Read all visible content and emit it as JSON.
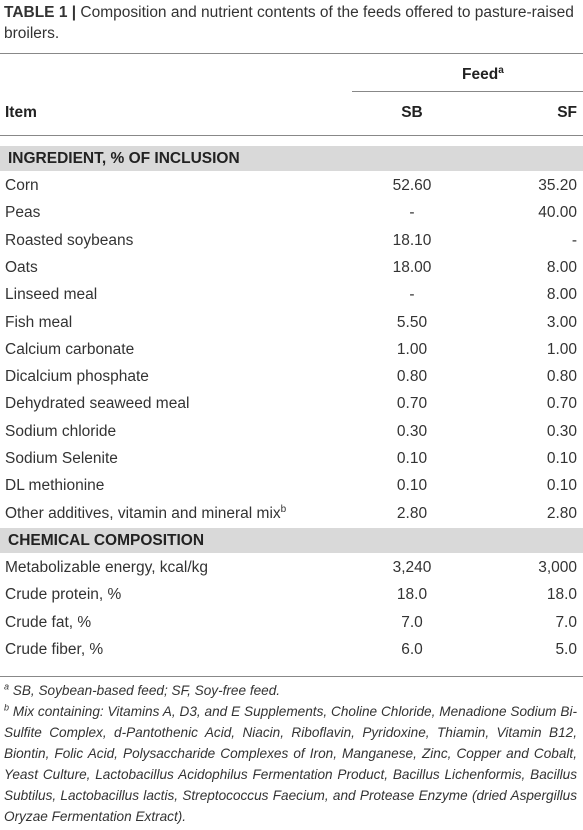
{
  "caption": {
    "label": "TABLE 1 |",
    "text": "Composition and nutrient contents of the feeds offered to pasture-raised broilers."
  },
  "header": {
    "group": "Feed",
    "group_sup": "a",
    "item": "Item",
    "col_sb": "SB",
    "col_sf": "SF"
  },
  "sections": [
    {
      "title": "INGREDIENT, % OF INCLUSION",
      "rows": [
        {
          "item": "Corn",
          "sup": "",
          "sb": "52.60",
          "sf": "35.20"
        },
        {
          "item": "Peas",
          "sup": "",
          "sb": "-",
          "sf": "40.00"
        },
        {
          "item": "Roasted soybeans",
          "sup": "",
          "sb": "18.10",
          "sf": "-"
        },
        {
          "item": "Oats",
          "sup": "",
          "sb": "18.00",
          "sf": "8.00"
        },
        {
          "item": "Linseed meal",
          "sup": "",
          "sb": "-",
          "sf": "8.00"
        },
        {
          "item": "Fish meal",
          "sup": "",
          "sb": "5.50",
          "sf": "3.00"
        },
        {
          "item": "Calcium carbonate",
          "sup": "",
          "sb": "1.00",
          "sf": "1.00"
        },
        {
          "item": "Dicalcium phosphate",
          "sup": "",
          "sb": "0.80",
          "sf": "0.80"
        },
        {
          "item": "Dehydrated seaweed meal",
          "sup": "",
          "sb": "0.70",
          "sf": "0.70"
        },
        {
          "item": "Sodium chloride",
          "sup": "",
          "sb": "0.30",
          "sf": "0.30"
        },
        {
          "item": "Sodium Selenite",
          "sup": "",
          "sb": "0.10",
          "sf": "0.10"
        },
        {
          "item": "DL methionine",
          "sup": "",
          "sb": "0.10",
          "sf": "0.10"
        },
        {
          "item": "Other additives, vitamin and mineral mix",
          "sup": "b",
          "sb": "2.80",
          "sf": "2.80"
        }
      ]
    },
    {
      "title": "CHEMICAL COMPOSITION",
      "rows": [
        {
          "item": "Metabolizable energy, kcal/kg",
          "sup": "",
          "sb": "3,240",
          "sf": "3,000"
        },
        {
          "item": "Crude protein, %",
          "sup": "",
          "sb": "18.0",
          "sf": "18.0"
        },
        {
          "item": "Crude fat, %",
          "sup": "",
          "sb": "7.0",
          "sf": "7.0"
        },
        {
          "item": "Crude fiber, %",
          "sup": "",
          "sb": "6.0",
          "sf": "5.0"
        }
      ]
    }
  ],
  "footnotes": [
    {
      "mark": "a",
      "text": "SB, Soybean-based feed; SF, Soy-free feed."
    },
    {
      "mark": "b",
      "text": "Mix containing: Vitamins A, D3, and E Supplements, Choline Chloride, Menadione Sodium Bi-Sulfite Complex, d-Pantothenic Acid, Niacin, Riboflavin, Pyridoxine, Thiamin, Vitamin B12, Biontin, Folic Acid, Polysaccharide Complexes of Iron, Manganese, Zinc, Copper and Cobalt, Yeast Culture, Lactobacillus Acidophilus Fermentation Product, Bacillus Lichenformis, Bacillus Subtilus, Lactobacillus lactis, Streptococcus Faecium, and Protease Enzyme (dried Aspergillus Oryzae Fermentation Extract)."
    }
  ]
}
